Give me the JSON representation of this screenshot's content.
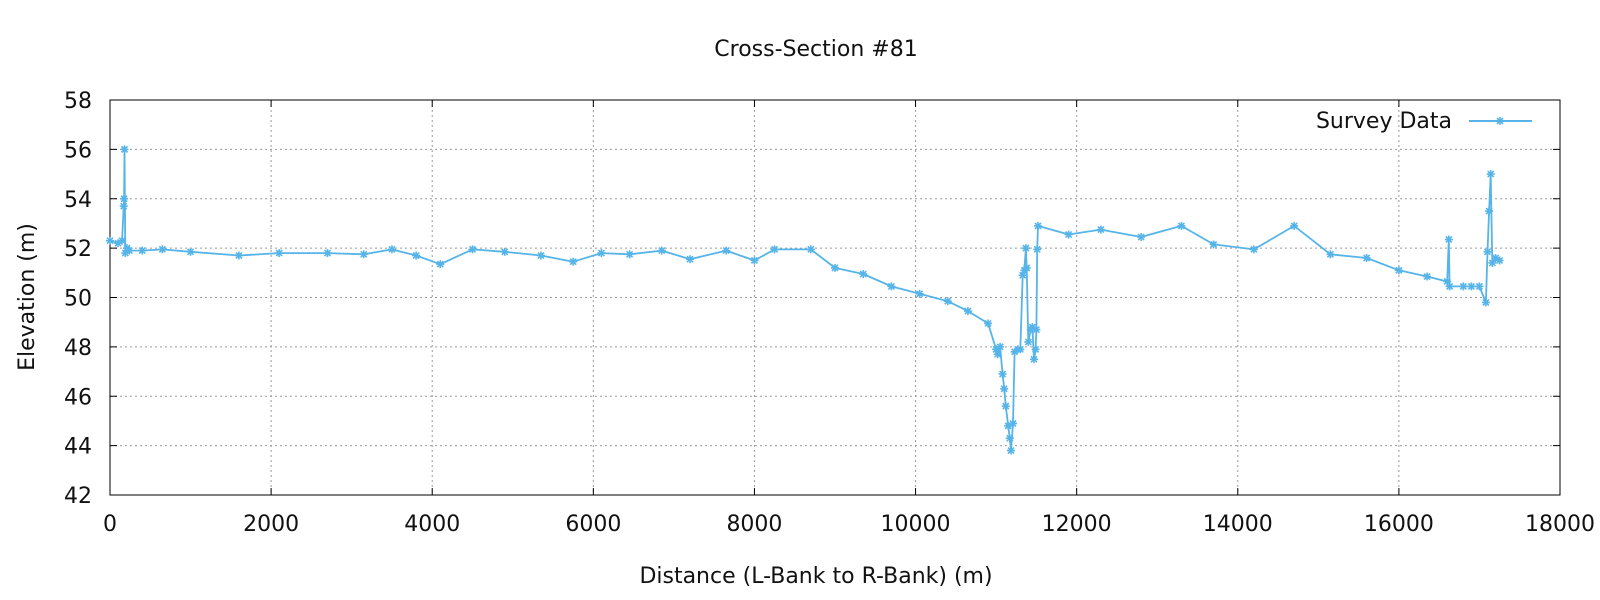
{
  "chart_data": {
    "type": "line",
    "title": "Cross-Section #81",
    "xlabel": "Distance (L-Bank to R-Bank) (m)",
    "ylabel": "Elevation (m)",
    "xlim": [
      0,
      18000
    ],
    "ylim": [
      42,
      58
    ],
    "xticks": [
      0,
      2000,
      4000,
      6000,
      8000,
      10000,
      12000,
      14000,
      16000,
      18000
    ],
    "yticks": [
      42,
      44,
      46,
      48,
      50,
      52,
      54,
      56,
      58
    ],
    "grid": true,
    "legend_position": "top-right",
    "series": [
      {
        "name": "Survey Data",
        "color": "#56b4e9",
        "marker": "asterisk",
        "points": [
          [
            0,
            52.3
          ],
          [
            100,
            52.2
          ],
          [
            150,
            52.3
          ],
          [
            170,
            53.7
          ],
          [
            175,
            54.0
          ],
          [
            180,
            56.0
          ],
          [
            190,
            51.8
          ],
          [
            210,
            52.0
          ],
          [
            240,
            51.9
          ],
          [
            400,
            51.9
          ],
          [
            650,
            51.95
          ],
          [
            1000,
            51.85
          ],
          [
            1600,
            51.7
          ],
          [
            2100,
            51.8
          ],
          [
            2700,
            51.8
          ],
          [
            3150,
            51.75
          ],
          [
            3500,
            51.95
          ],
          [
            3800,
            51.7
          ],
          [
            4100,
            51.35
          ],
          [
            4500,
            51.95
          ],
          [
            4900,
            51.85
          ],
          [
            5350,
            51.7
          ],
          [
            5750,
            51.45
          ],
          [
            6100,
            51.8
          ],
          [
            6450,
            51.75
          ],
          [
            6850,
            51.9
          ],
          [
            7200,
            51.55
          ],
          [
            7650,
            51.9
          ],
          [
            8000,
            51.5
          ],
          [
            8250,
            51.95
          ],
          [
            8700,
            51.95
          ],
          [
            9000,
            51.2
          ],
          [
            9350,
            50.95
          ],
          [
            9700,
            50.45
          ],
          [
            10050,
            50.15
          ],
          [
            10400,
            49.85
          ],
          [
            10650,
            49.45
          ],
          [
            10900,
            48.95
          ],
          [
            11000,
            47.9
          ],
          [
            11020,
            47.7
          ],
          [
            11050,
            48.0
          ],
          [
            11080,
            46.9
          ],
          [
            11100,
            46.3
          ],
          [
            11120,
            45.6
          ],
          [
            11150,
            44.8
          ],
          [
            11170,
            44.3
          ],
          [
            11185,
            43.8
          ],
          [
            11210,
            44.9
          ],
          [
            11230,
            47.8
          ],
          [
            11270,
            47.9
          ],
          [
            11300,
            47.9
          ],
          [
            11330,
            50.9
          ],
          [
            11350,
            51.1
          ],
          [
            11370,
            52.0
          ],
          [
            11380,
            51.2
          ],
          [
            11400,
            48.2
          ],
          [
            11430,
            48.7
          ],
          [
            11450,
            48.8
          ],
          [
            11470,
            47.5
          ],
          [
            11490,
            47.9
          ],
          [
            11500,
            48.7
          ],
          [
            11510,
            51.95
          ],
          [
            11520,
            52.9
          ],
          [
            11900,
            52.55
          ],
          [
            12300,
            52.75
          ],
          [
            12800,
            52.45
          ],
          [
            13300,
            52.9
          ],
          [
            13700,
            52.15
          ],
          [
            14200,
            51.95
          ],
          [
            14700,
            52.9
          ],
          [
            15150,
            51.75
          ],
          [
            15600,
            51.6
          ],
          [
            16000,
            51.1
          ],
          [
            16350,
            50.85
          ],
          [
            16600,
            50.65
          ],
          [
            16620,
            52.35
          ],
          [
            16630,
            50.45
          ],
          [
            16800,
            50.45
          ],
          [
            16900,
            50.45
          ],
          [
            17000,
            50.45
          ],
          [
            17080,
            49.8
          ],
          [
            17100,
            51.85
          ],
          [
            17120,
            53.5
          ],
          [
            17140,
            55.0
          ],
          [
            17160,
            51.4
          ],
          [
            17200,
            51.6
          ],
          [
            17250,
            51.5
          ]
        ]
      }
    ]
  }
}
